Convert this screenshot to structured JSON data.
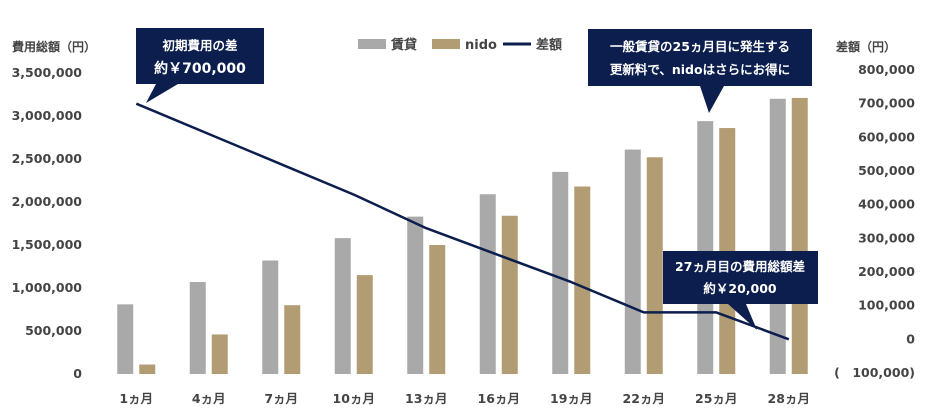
{
  "chart_data": {
    "type": "bar",
    "left_axis_label": "費用総額（円）",
    "right_axis_label": "差額（円）",
    "categories": [
      "1ヵ月",
      "4ヵ月",
      "7ヵ月",
      "10ヵ月",
      "13ヵ月",
      "16ヵ月",
      "19ヵ月",
      "22ヵ月",
      "25ヵ月",
      "28ヵ月"
    ],
    "series": [
      {
        "name": "賃貸",
        "type": "bar",
        "axis": "left",
        "color": "#a9a9a9",
        "values": [
          810000,
          1070000,
          1320000,
          1580000,
          1830000,
          2090000,
          2350000,
          2610000,
          2940000,
          3200000
        ]
      },
      {
        "name": "nido",
        "type": "bar",
        "axis": "left",
        "color": "#b29c73",
        "values": [
          110000,
          460000,
          800000,
          1150000,
          1500000,
          1840000,
          2180000,
          2520000,
          2860000,
          3210000
        ]
      },
      {
        "name": "差額",
        "type": "line",
        "axis": "right",
        "color": "#0c1e4e",
        "values": [
          700000,
          610000,
          520000,
          430000,
          330000,
          250000,
          170000,
          80000,
          80000,
          0
        ]
      }
    ],
    "left_ticks": [
      "0",
      "500,000",
      "1,000,000",
      "1,500,000",
      "2,000,000",
      "2,500,000",
      "3,000,000",
      "3,500,000"
    ],
    "right_ticks": [
      "(　100,000)",
      "0",
      "100,000",
      "200,000",
      "300,000",
      "400,000",
      "500,000",
      "600,000",
      "700,000",
      "800,000"
    ],
    "ylim_left": [
      0,
      3500000
    ],
    "ylim_right": [
      -100000,
      800000
    ],
    "legend_position": "top-center",
    "annotations": [
      {
        "id": "initial",
        "lines": [
          "初期費用の差",
          "約￥700,000"
        ]
      },
      {
        "id": "renewal",
        "lines": [
          "一般賃貸の25ヵ月目に発生する",
          "更新料で、nidoはさらにお得に"
        ]
      },
      {
        "id": "month27",
        "lines": [
          "27ヵ月目の費用総額差",
          "約￥20,000"
        ]
      }
    ]
  }
}
